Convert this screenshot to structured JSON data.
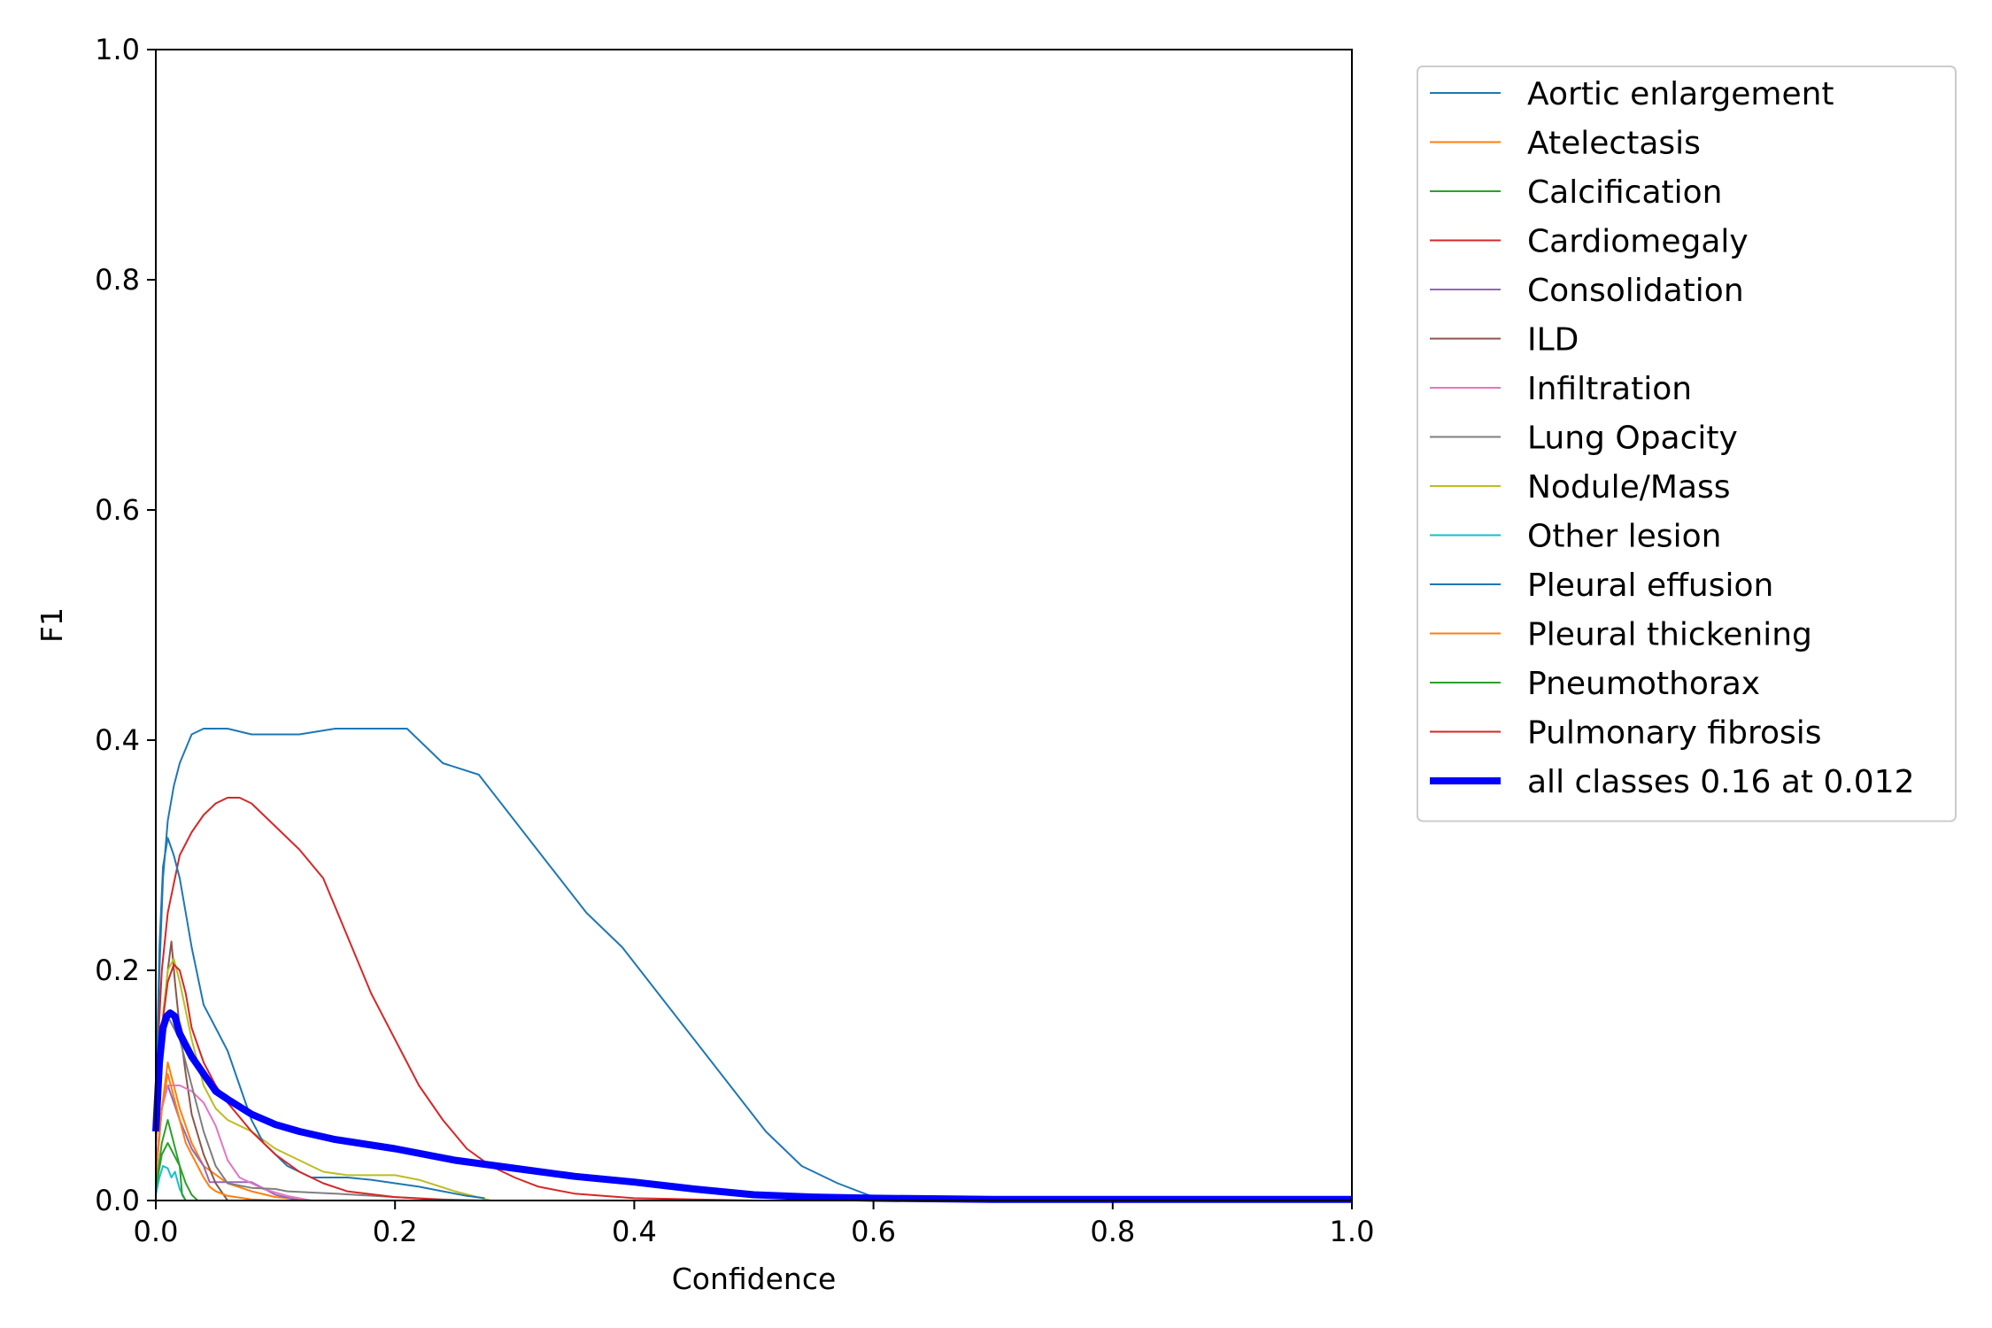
{
  "chart_data": {
    "type": "line",
    "title": "",
    "xlabel": "Confidence",
    "ylabel": "F1",
    "xlim": [
      0,
      1
    ],
    "ylim": [
      0,
      1
    ],
    "xticks": [
      "0.0",
      "0.2",
      "0.4",
      "0.6",
      "0.8",
      "1.0"
    ],
    "yticks": [
      "0.0",
      "0.2",
      "0.4",
      "0.6",
      "0.8",
      "1.0"
    ],
    "grid": false,
    "legend_position": "outside-right-top",
    "series": [
      {
        "name": "Aortic enlargement",
        "color": "#1f77b4",
        "width": 1,
        "x": [
          0.0,
          0.003,
          0.006,
          0.01,
          0.015,
          0.02,
          0.03,
          0.04,
          0.06,
          0.08,
          0.1,
          0.12,
          0.15,
          0.18,
          0.21,
          0.24,
          0.27,
          0.3,
          0.33,
          0.36,
          0.39,
          0.42,
          0.45,
          0.48,
          0.51,
          0.54,
          0.57,
          0.6,
          0.65,
          1.0
        ],
        "y": [
          0.06,
          0.2,
          0.28,
          0.33,
          0.36,
          0.38,
          0.405,
          0.41,
          0.41,
          0.405,
          0.405,
          0.405,
          0.41,
          0.41,
          0.41,
          0.38,
          0.37,
          0.33,
          0.29,
          0.25,
          0.22,
          0.18,
          0.14,
          0.1,
          0.06,
          0.03,
          0.015,
          0.003,
          0.0,
          0.0
        ]
      },
      {
        "name": "Atelectasis",
        "color": "#ff7f0e",
        "width": 1,
        "x": [
          0.0,
          0.005,
          0.01,
          0.015,
          0.02,
          0.03,
          0.04,
          0.06,
          0.08,
          0.1,
          0.13
        ],
        "y": [
          0.02,
          0.08,
          0.12,
          0.1,
          0.08,
          0.05,
          0.03,
          0.015,
          0.008,
          0.003,
          0.0
        ]
      },
      {
        "name": "Calcification",
        "color": "#2ca02c",
        "width": 1,
        "x": [
          0.0,
          0.005,
          0.01,
          0.015,
          0.02,
          0.025,
          0.03,
          0.035
        ],
        "y": [
          0.01,
          0.05,
          0.07,
          0.05,
          0.03,
          0.015,
          0.005,
          0.0
        ]
      },
      {
        "name": "Cardiomegaly",
        "color": "#d62728",
        "width": 1,
        "x": [
          0.0,
          0.005,
          0.01,
          0.02,
          0.03,
          0.04,
          0.05,
          0.06,
          0.07,
          0.08,
          0.09,
          0.1,
          0.12,
          0.14,
          0.16,
          0.18,
          0.2,
          0.22,
          0.24,
          0.26,
          0.28,
          0.3,
          0.32,
          0.35,
          0.4,
          0.45,
          0.5
        ],
        "y": [
          0.1,
          0.2,
          0.25,
          0.3,
          0.32,
          0.335,
          0.345,
          0.35,
          0.35,
          0.345,
          0.335,
          0.325,
          0.305,
          0.28,
          0.23,
          0.18,
          0.14,
          0.1,
          0.07,
          0.045,
          0.03,
          0.02,
          0.012,
          0.006,
          0.002,
          0.001,
          0.0
        ]
      },
      {
        "name": "Consolidation",
        "color": "#9467bd",
        "width": 1,
        "x": [
          0.0,
          0.005,
          0.01,
          0.015,
          0.02,
          0.03,
          0.04,
          0.045,
          0.05,
          0.06,
          0.08,
          0.1,
          0.12
        ],
        "y": [
          0.02,
          0.08,
          0.1,
          0.085,
          0.07,
          0.045,
          0.03,
          0.016,
          0.016,
          0.016,
          0.016,
          0.005,
          0.0
        ]
      },
      {
        "name": "ILD",
        "color": "#8c564b",
        "width": 1,
        "x": [
          0.0,
          0.005,
          0.01,
          0.013,
          0.016,
          0.02,
          0.025,
          0.03,
          0.04,
          0.05,
          0.06
        ],
        "y": [
          0.05,
          0.15,
          0.2,
          0.225,
          0.19,
          0.15,
          0.11,
          0.075,
          0.04,
          0.015,
          0.0
        ]
      },
      {
        "name": "Infiltration",
        "color": "#e377c2",
        "width": 1,
        "x": [
          0.0,
          0.005,
          0.01,
          0.02,
          0.03,
          0.04,
          0.05,
          0.06,
          0.07,
          0.09,
          0.11,
          0.13
        ],
        "y": [
          0.03,
          0.08,
          0.1,
          0.1,
          0.095,
          0.085,
          0.065,
          0.035,
          0.02,
          0.01,
          0.004,
          0.0
        ]
      },
      {
        "name": "Lung Opacity",
        "color": "#7f7f7f",
        "width": 1,
        "x": [
          0.0,
          0.005,
          0.01,
          0.02,
          0.03,
          0.04,
          0.05,
          0.06,
          0.08,
          0.1,
          0.11,
          0.15,
          0.2,
          0.24,
          0.275
        ],
        "y": [
          0.05,
          0.14,
          0.16,
          0.14,
          0.1,
          0.06,
          0.03,
          0.015,
          0.011,
          0.01,
          0.008,
          0.006,
          0.003,
          0.001,
          0.0
        ]
      },
      {
        "name": "Nodule/Mass",
        "color": "#bcbd22",
        "width": 1,
        "x": [
          0.0,
          0.005,
          0.01,
          0.015,
          0.02,
          0.03,
          0.04,
          0.05,
          0.06,
          0.08,
          0.1,
          0.12,
          0.14,
          0.16,
          0.2,
          0.22,
          0.25,
          0.28
        ],
        "y": [
          0.05,
          0.15,
          0.2,
          0.21,
          0.19,
          0.14,
          0.1,
          0.08,
          0.07,
          0.06,
          0.045,
          0.035,
          0.025,
          0.022,
          0.022,
          0.018,
          0.008,
          0.0
        ]
      },
      {
        "name": "Other lesion",
        "color": "#17becf",
        "width": 1,
        "x": [
          0.0,
          0.003,
          0.006,
          0.01,
          0.013,
          0.016,
          0.02,
          0.025
        ],
        "y": [
          0.005,
          0.02,
          0.03,
          0.028,
          0.02,
          0.025,
          0.01,
          0.0
        ]
      },
      {
        "name": "Pleural effusion",
        "color": "#1f77b4",
        "width": 1,
        "x": [
          0.0,
          0.003,
          0.006,
          0.01,
          0.015,
          0.02,
          0.025,
          0.03,
          0.04,
          0.05,
          0.06,
          0.07,
          0.08,
          0.09,
          0.1,
          0.11,
          0.12,
          0.13,
          0.14,
          0.15,
          0.16,
          0.18,
          0.2,
          0.22,
          0.24,
          0.26,
          0.275
        ],
        "y": [
          0.08,
          0.22,
          0.29,
          0.315,
          0.3,
          0.28,
          0.25,
          0.22,
          0.17,
          0.15,
          0.13,
          0.1,
          0.07,
          0.05,
          0.04,
          0.03,
          0.025,
          0.02,
          0.02,
          0.02,
          0.02,
          0.018,
          0.015,
          0.012,
          0.008,
          0.004,
          0.002
        ]
      },
      {
        "name": "Pleural thickening",
        "color": "#ff7f0e",
        "width": 1,
        "x": [
          0.0,
          0.005,
          0.01,
          0.015,
          0.02,
          0.025,
          0.03,
          0.035,
          0.04,
          0.045,
          0.05,
          0.06,
          0.08,
          0.1
        ],
        "y": [
          0.02,
          0.08,
          0.11,
          0.09,
          0.07,
          0.05,
          0.04,
          0.03,
          0.02,
          0.012,
          0.008,
          0.004,
          0.001,
          0.0
        ]
      },
      {
        "name": "Pneumothorax",
        "color": "#2ca02c",
        "width": 1,
        "x": [
          0.0,
          0.005,
          0.01,
          0.015,
          0.02,
          0.022,
          0.025
        ],
        "y": [
          0.01,
          0.04,
          0.05,
          0.04,
          0.03,
          0.005,
          0.0
        ]
      },
      {
        "name": "Pulmonary fibrosis",
        "color": "#d62728",
        "width": 1,
        "x": [
          0.0,
          0.005,
          0.01,
          0.015,
          0.02,
          0.025,
          0.03,
          0.04,
          0.05,
          0.06,
          0.08,
          0.1,
          0.12,
          0.14,
          0.16,
          0.2,
          0.25
        ],
        "y": [
          0.05,
          0.15,
          0.19,
          0.205,
          0.2,
          0.18,
          0.15,
          0.12,
          0.1,
          0.085,
          0.06,
          0.04,
          0.025,
          0.015,
          0.008,
          0.003,
          0.0
        ]
      },
      {
        "name": "all classes 0.16 at 0.012",
        "color": "#0000ff",
        "width": 4,
        "x": [
          0.0,
          0.003,
          0.006,
          0.009,
          0.012,
          0.016,
          0.02,
          0.03,
          0.04,
          0.05,
          0.06,
          0.08,
          0.1,
          0.12,
          0.15,
          0.2,
          0.25,
          0.3,
          0.35,
          0.4,
          0.45,
          0.5,
          0.55,
          0.6,
          0.7,
          0.8,
          0.9,
          1.0
        ],
        "y": [
          0.06,
          0.12,
          0.15,
          0.16,
          0.163,
          0.16,
          0.145,
          0.125,
          0.11,
          0.095,
          0.088,
          0.075,
          0.066,
          0.06,
          0.053,
          0.045,
          0.035,
          0.028,
          0.021,
          0.016,
          0.01,
          0.005,
          0.003,
          0.002,
          0.001,
          0.001,
          0.001,
          0.001
        ]
      }
    ]
  }
}
